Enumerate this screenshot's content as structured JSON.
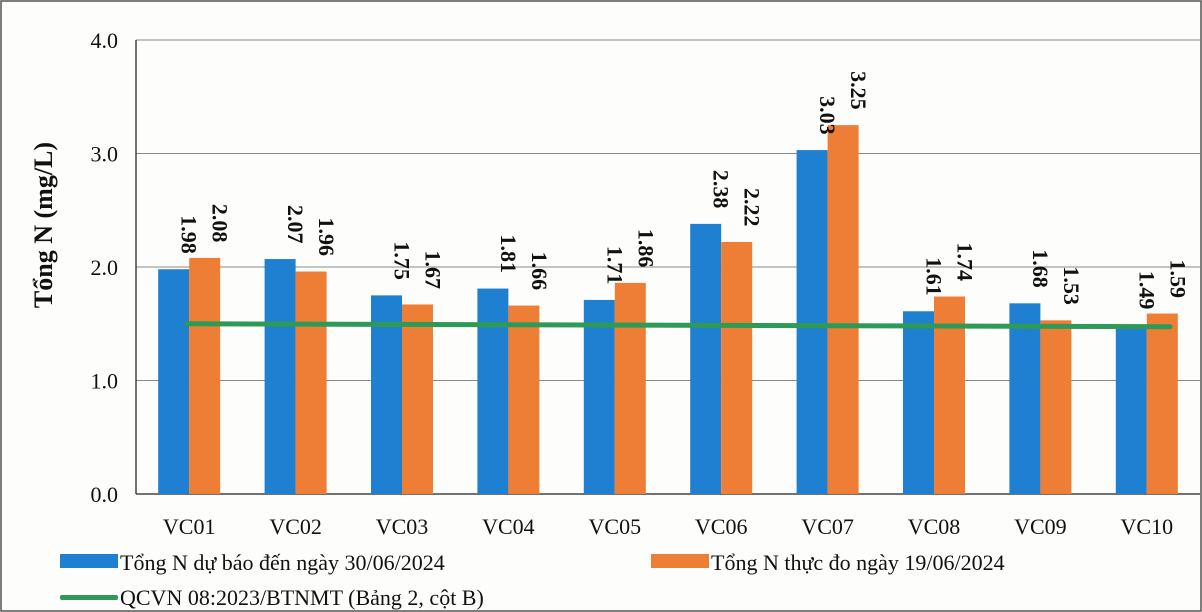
{
  "chart_data": {
    "type": "bar",
    "ylabel": "Tổng N (mg/L)",
    "ylim": [
      0,
      4.0
    ],
    "yticks": [
      "0.0",
      "1.0",
      "2.0",
      "3.0",
      "4.0"
    ],
    "grid": true,
    "legend_position": "bottom",
    "categories": [
      "VC01",
      "VC02",
      "VC03",
      "VC04",
      "VC05",
      "VC06",
      "VC07",
      "VC08",
      "VC09",
      "VC10"
    ],
    "series": [
      {
        "name": "Tổng N dự báo đến ngày 30/06/2024",
        "color": "#1f7fd0",
        "values": [
          1.98,
          2.07,
          1.75,
          1.81,
          1.71,
          2.38,
          3.03,
          1.61,
          1.68,
          1.49
        ],
        "labels": [
          "1.98",
          "2.07",
          "1.75",
          "1.81",
          "1.71",
          "2.38",
          "3.03",
          "1.61",
          "1.68",
          "1.49"
        ]
      },
      {
        "name": "Tổng N thực đo ngày 19/06/2024",
        "color": "#ee7d35",
        "values": [
          2.08,
          1.96,
          1.67,
          1.66,
          1.86,
          2.22,
          3.25,
          1.74,
          1.53,
          1.59
        ],
        "labels": [
          "2.08",
          "1.96",
          "1.67",
          "1.66",
          "1.86",
          "2.22",
          "3.25",
          "1.74",
          "1.53",
          "1.59"
        ]
      }
    ],
    "reference_line": {
      "name": "QCVN 08:2023/BTNMT (Bảng 2, cột B)",
      "value": 1.5,
      "color": "#2e9a57"
    }
  }
}
